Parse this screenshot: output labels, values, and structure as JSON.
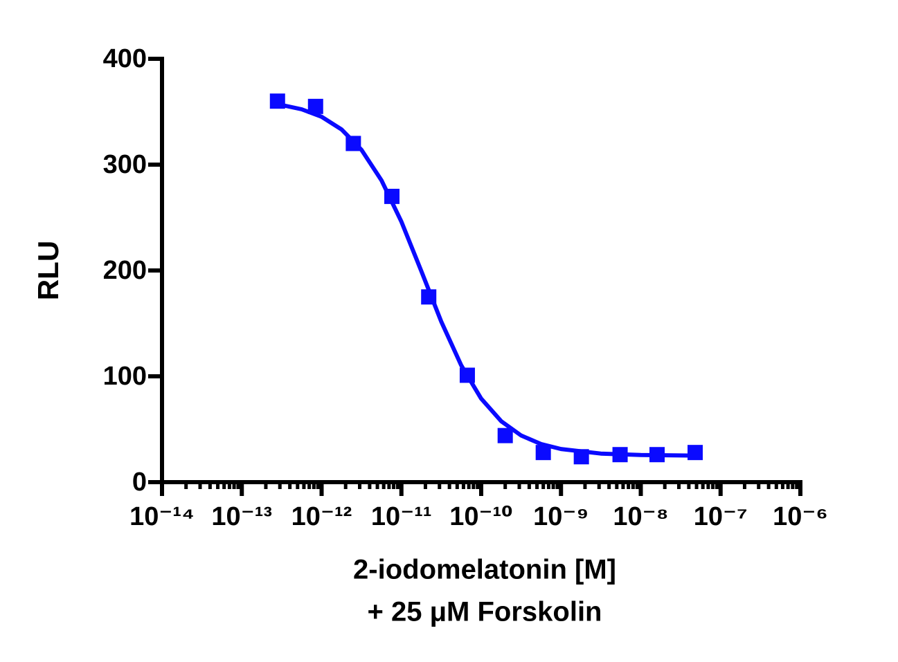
{
  "chart_data": {
    "type": "scatter",
    "ylabel": "RLU",
    "xlabel": [
      "2-iodomelatonin [M]",
      "+ 25 μM Forskolin"
    ],
    "x": [
      2.8e-13,
      8.4e-13,
      2.5e-12,
      7.6e-12,
      2.2e-11,
      6.7e-11,
      2e-10,
      6e-10,
      1.8e-09,
      5.5e-09,
      1.6e-08,
      4.8e-08
    ],
    "values": [
      360,
      355,
      320,
      270,
      175,
      101,
      44,
      28,
      24,
      26,
      26,
      28
    ],
    "fit": {
      "x": [
        2.82e-13,
        5.62e-13,
        1e-12,
        1.78e-12,
        3.16e-12,
        5.62e-12,
        1e-11,
        1.78e-11,
        3.16e-11,
        5.62e-11,
        1e-10,
        1.78e-10,
        3.16e-10,
        5.62e-10,
        1e-09,
        3.16e-09,
        1e-08,
        4.8e-08
      ],
      "values": [
        357.1,
        352.3,
        345.2,
        333.2,
        314.0,
        285.2,
        246.0,
        199.3,
        151.7,
        110.3,
        78.9,
        57.6,
        44.1,
        36.0,
        31.3,
        27.0,
        25.6,
        25.1
      ]
    },
    "color": "#0a0aff",
    "xscale": "log",
    "xlim": [
      1e-14,
      1e-06
    ],
    "xticks": [
      {
        "value": 1e-14,
        "label": "10⁻¹⁴"
      },
      {
        "value": 1e-13,
        "label": "10⁻¹³"
      },
      {
        "value": 1e-12,
        "label": "10⁻¹²"
      },
      {
        "value": 1e-11,
        "label": "10⁻¹¹"
      },
      {
        "value": 1e-10,
        "label": "10⁻¹⁰"
      },
      {
        "value": 1e-09,
        "label": "10⁻⁹"
      },
      {
        "value": 1e-08,
        "label": "10⁻⁸"
      },
      {
        "value": 1e-07,
        "label": "10⁻⁷"
      },
      {
        "value": 1e-06,
        "label": "10⁻⁶"
      }
    ],
    "ylim": [
      0,
      400
    ],
    "yticks": [
      0,
      100,
      200,
      300,
      400
    ],
    "minor_ticks": true
  }
}
